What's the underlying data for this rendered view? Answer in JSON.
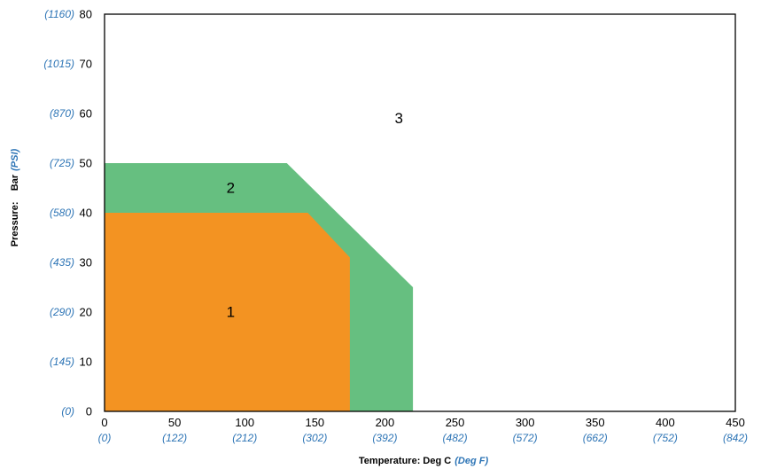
{
  "chart_data": {
    "type": "area",
    "xlim": [
      0,
      450
    ],
    "ylim": [
      0,
      80
    ],
    "x_ticks": [
      0,
      50,
      100,
      150,
      200,
      250,
      300,
      350,
      400,
      450
    ],
    "x_tick_labels": [
      "0",
      "50",
      "100",
      "150",
      "200",
      "250",
      "300",
      "350",
      "400",
      "450"
    ],
    "x_tick_labels_alt": [
      "(0)",
      "(122)",
      "(212)",
      "(302)",
      "(392)",
      "(482)",
      "(572)",
      "(662)",
      "(752)",
      "(842)"
    ],
    "y_ticks": [
      0,
      10,
      20,
      30,
      40,
      50,
      60,
      70,
      80
    ],
    "y_tick_labels": [
      "0",
      "10",
      "20",
      "30",
      "40",
      "50",
      "60",
      "70",
      "80"
    ],
    "y_tick_labels_alt": [
      "(0)",
      "(145)",
      "(290)",
      "(435)",
      "(580)",
      "(725)",
      "(870)",
      "(1015)",
      "(1160)"
    ],
    "xlabel": "Temperature: Deg C",
    "xlabel_alt": "(Deg F)",
    "ylabel": "Pressure:    Bar",
    "ylabel_alt": "(PSI)",
    "grid": false,
    "series": [
      {
        "name": "2",
        "color": "#66BF80",
        "points": [
          [
            0,
            0
          ],
          [
            0,
            50
          ],
          [
            130,
            50
          ],
          [
            220,
            25
          ],
          [
            220,
            0
          ]
        ],
        "label_at": [
          90,
          45
        ]
      },
      {
        "name": "1",
        "color": "#F39322",
        "points": [
          [
            0,
            0
          ],
          [
            0,
            40
          ],
          [
            145,
            40
          ],
          [
            175,
            31
          ],
          [
            175,
            0
          ]
        ],
        "label_at": [
          90,
          20
        ]
      }
    ],
    "annotations": [
      {
        "text": "3",
        "x": 210,
        "y": 59
      }
    ]
  }
}
